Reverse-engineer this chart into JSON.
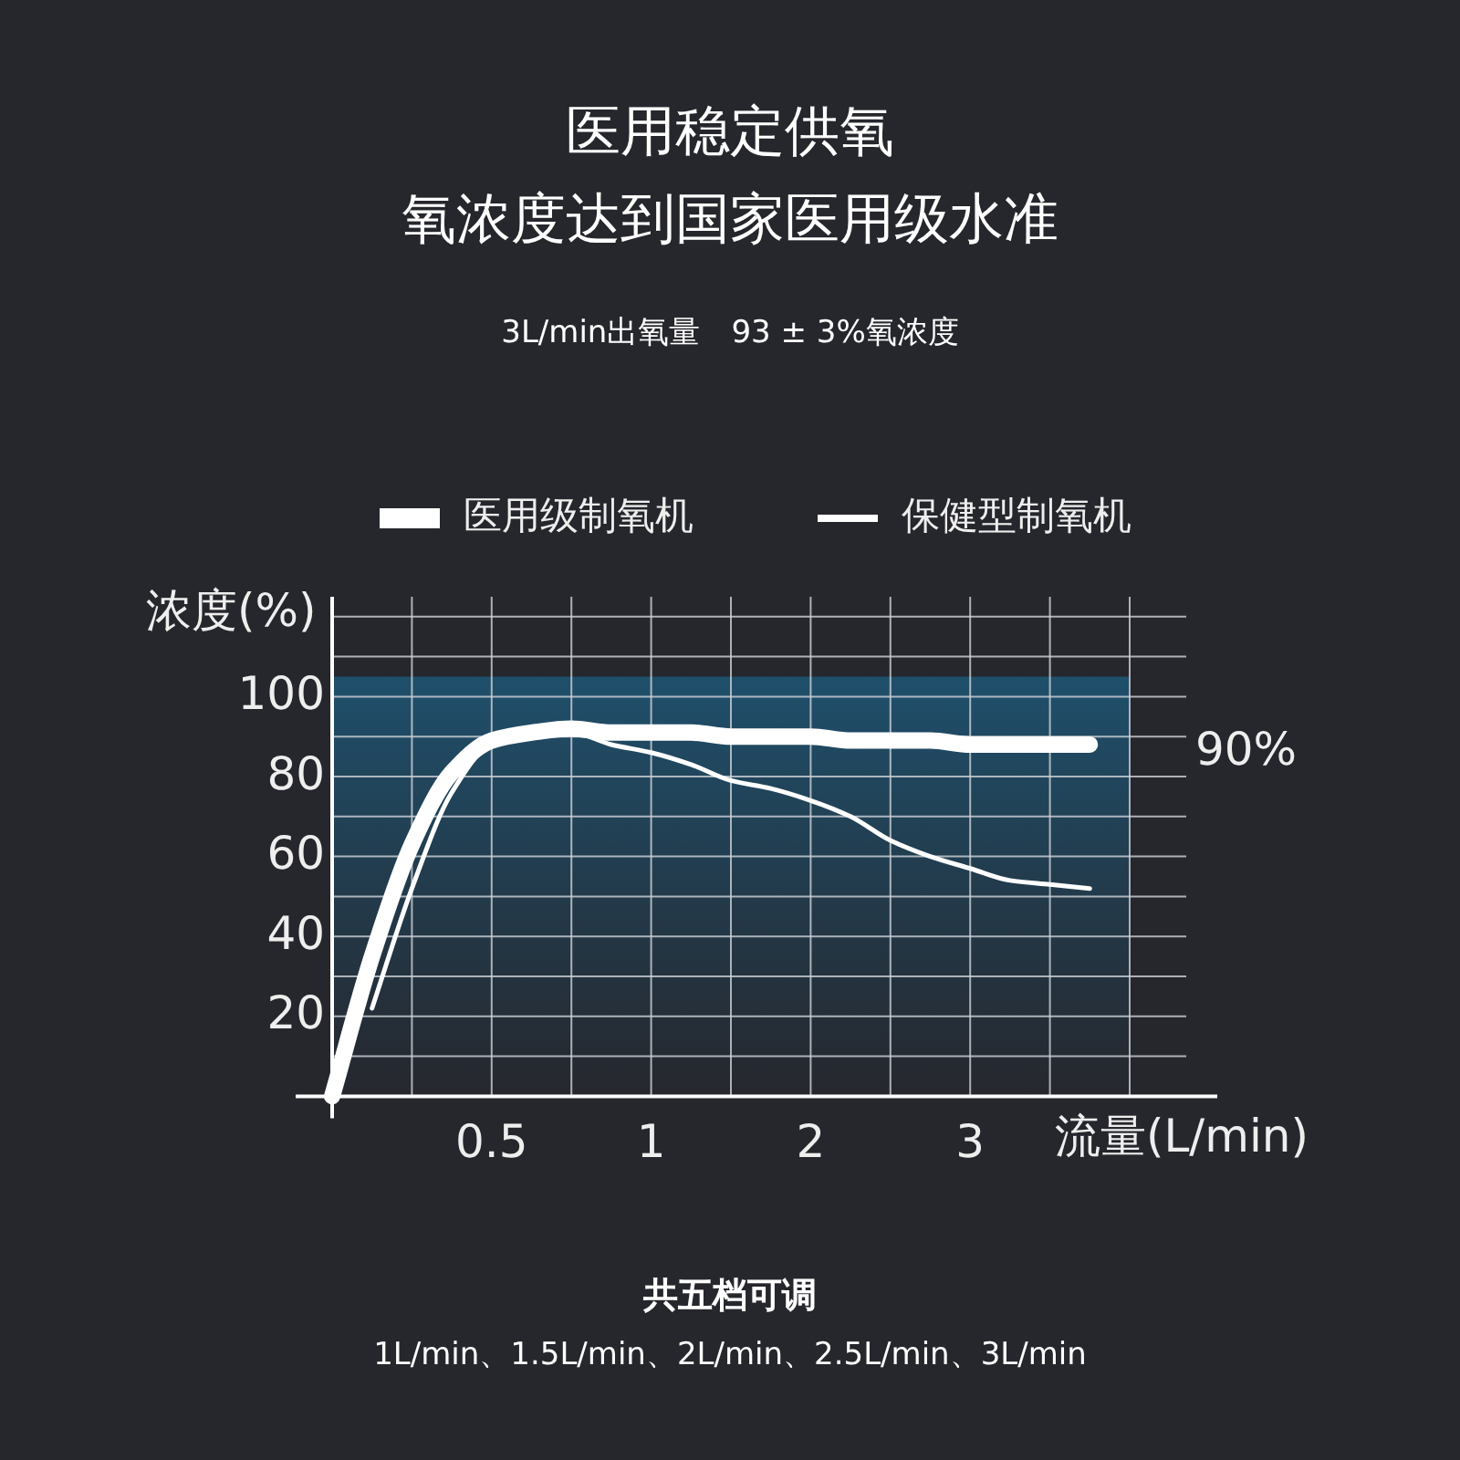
{
  "chart_data": {
    "type": "line",
    "title": "医用稳定供氧",
    "subtitle": "氧浓度达到国家医用级水准",
    "xlabel": "流量(L/min)",
    "ylabel": "浓度(%)",
    "categories": [
      null,
      null,
      null,
      null,
      "0.5",
      null,
      null,
      null,
      "1",
      null,
      null,
      null,
      "2",
      null,
      null,
      null,
      "3",
      null,
      null,
      null,
      null
    ],
    "series": [
      {
        "name": "医用级制氧机",
        "color": "#ffffff",
        "values": [
          0,
          35,
          63,
          81,
          89,
          91,
          92,
          91,
          91,
          91,
          90,
          90,
          90,
          89,
          89,
          89,
          88,
          88,
          88,
          88,
          null
        ]
      },
      {
        "name": "保健型制氧机",
        "color": "#ffffff",
        "values": [
          null,
          22,
          52,
          76,
          88,
          90,
          91,
          88,
          86,
          83,
          79,
          77,
          74,
          70,
          64,
          60,
          57,
          54,
          53,
          52,
          null
        ]
      }
    ],
    "ylim": [
      0,
      125
    ],
    "yticks": [
      {
        "value": 10,
        "label": null
      },
      20,
      {
        "value": 30,
        "label": null
      },
      40,
      {
        "value": 50,
        "label": null
      },
      60,
      {
        "value": 70,
        "label": null
      },
      80,
      {
        "value": 90,
        "label": null
      },
      100,
      {
        "value": 110,
        "label": null
      },
      {
        "value": 120,
        "label": null
      }
    ],
    "bands": [
      {
        "axis": "y",
        "from": 0,
        "to": 105,
        "color": "#1f4f6b"
      }
    ],
    "annotations": [
      "3L/min出氧量　93 ± 3%氧浓度",
      "90%",
      "共五档可调",
      "1L/min、1.5L/min、2L/min、2.5L/min、3L/min"
    ],
    "grid": true,
    "legend": "top",
    "marker": "none",
    "line_style": "solid"
  }
}
